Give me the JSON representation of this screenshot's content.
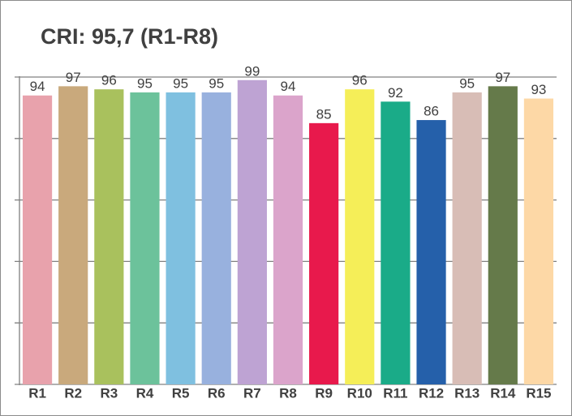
{
  "chart_data": {
    "type": "bar",
    "title": "CRI: 95,7 (R1-R8)",
    "categories": [
      "R1",
      "R2",
      "R3",
      "R4",
      "R5",
      "R6",
      "R7",
      "R8",
      "R9",
      "R10",
      "R11",
      "R12",
      "R13",
      "R14",
      "R15"
    ],
    "values": [
      94,
      97,
      96,
      95,
      95,
      95,
      99,
      94,
      85,
      96,
      92,
      86,
      95,
      97,
      93
    ],
    "colors": [
      "#e8a2ac",
      "#c9a97c",
      "#a9c15d",
      "#6cc29b",
      "#7fc0e0",
      "#98b1de",
      "#bea3d3",
      "#dba4cb",
      "#e8194c",
      "#f5ee58",
      "#1aab88",
      "#2560aa",
      "#d8bdb6",
      "#657a4a",
      "#fdd8a6"
    ],
    "ylim": [
      0,
      100
    ],
    "yticks": [
      0,
      20,
      40,
      60,
      80,
      100
    ],
    "grid": true
  }
}
